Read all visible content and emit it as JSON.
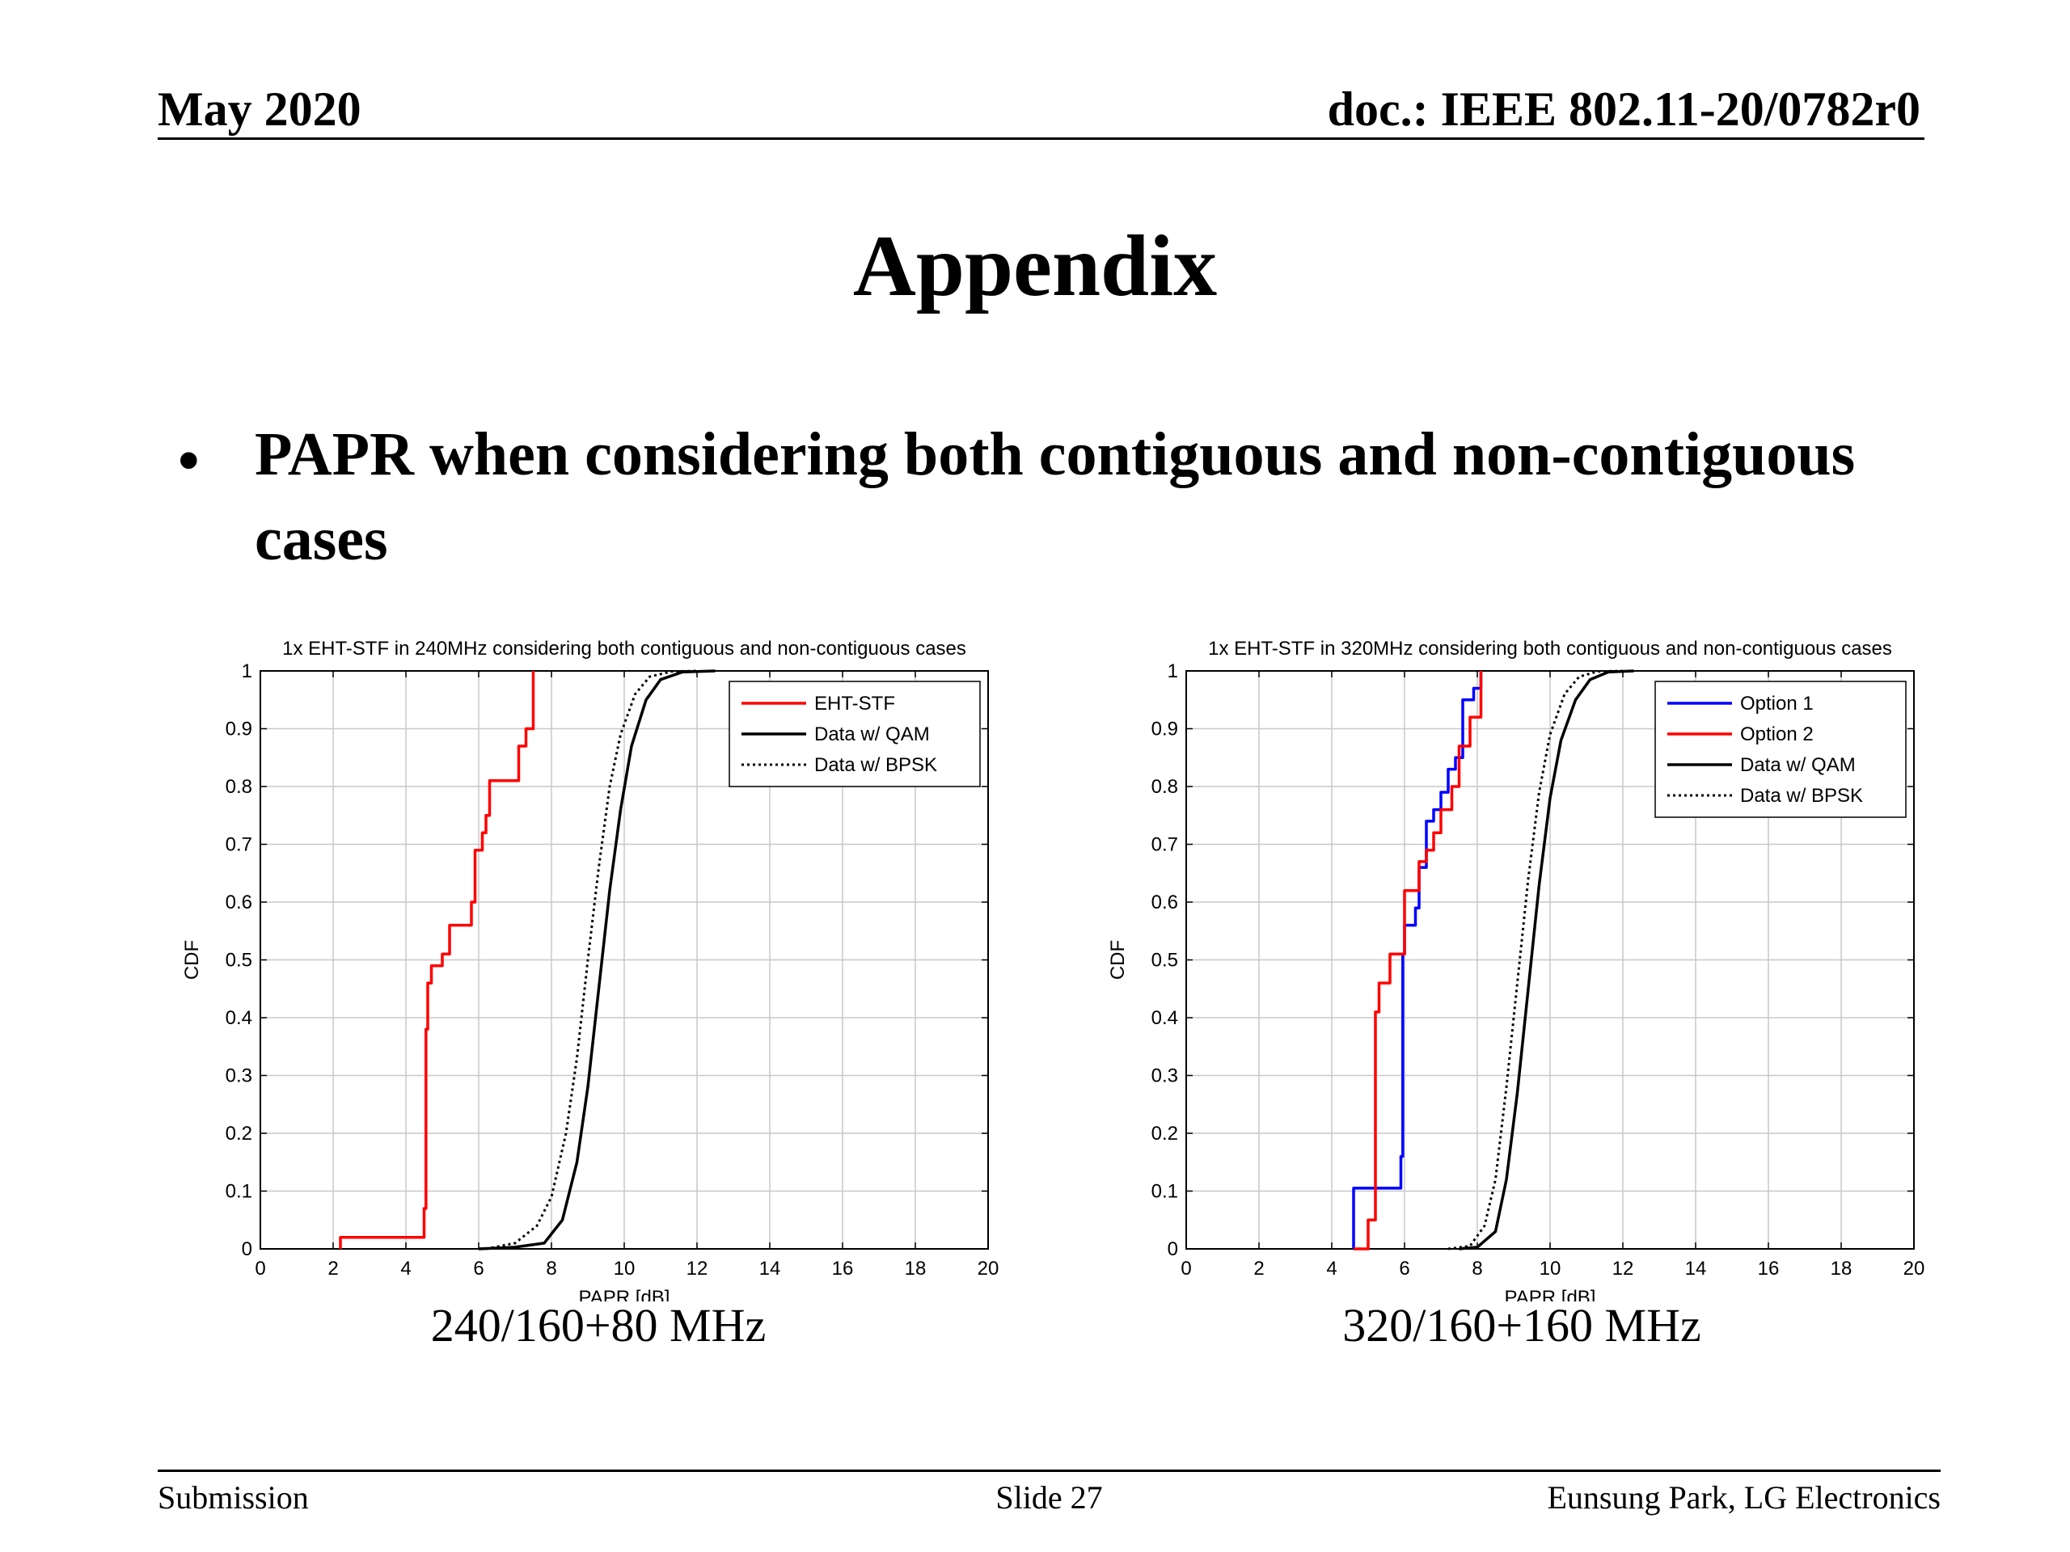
{
  "header": {
    "date": "May 2020",
    "doc": "doc.: IEEE 802.11-20/0782r0"
  },
  "slide": {
    "title": "Appendix",
    "bullet_symbol": "•",
    "bullet": "PAPR when considering both contiguous and non-contiguous cases"
  },
  "captions": [
    "240/160+80 MHz",
    "320/160+160 MHz"
  ],
  "footer": {
    "left": "Submission",
    "center": "Slide 27",
    "right": "Eunsung Park, LG Electronics"
  },
  "colors": {
    "red": "#ff0000",
    "blue": "#0000ff",
    "black": "#000000",
    "grid": "#c8c8c8"
  },
  "chart_data": [
    {
      "type": "line",
      "title": "1x EHT-STF in 240MHz considering both contiguous and non-contiguous cases",
      "xlabel": "PAPR [dB]",
      "ylabel": "CDF",
      "xlim": [
        0,
        20
      ],
      "ylim": [
        0,
        1
      ],
      "xticks": [
        "0",
        "2",
        "4",
        "6",
        "8",
        "10",
        "12",
        "14",
        "16",
        "18",
        "20"
      ],
      "yticks": [
        "0",
        "0.1",
        "0.2",
        "0.3",
        "0.4",
        "0.5",
        "0.6",
        "0.7",
        "0.8",
        "0.9",
        "1"
      ],
      "grid": true,
      "legend_position": "top-right",
      "series": [
        {
          "name": "EHT-STF",
          "style": "solid",
          "color": "#ff0000",
          "step": true,
          "x": [
            2.2,
            2.2,
            4.5,
            4.55,
            4.6,
            4.7,
            5.0,
            5.2,
            5.4,
            5.8,
            5.9,
            6.1,
            6.2,
            6.3,
            6.5,
            7.1,
            7.3,
            7.5
          ],
          "y": [
            0,
            0.02,
            0.07,
            0.38,
            0.46,
            0.49,
            0.51,
            0.56,
            0.56,
            0.6,
            0.69,
            0.72,
            0.75,
            0.81,
            0.81,
            0.87,
            0.9,
            1.0
          ]
        },
        {
          "name": "Data w/ QAM",
          "style": "solid",
          "color": "#000000",
          "x": [
            6.0,
            7.0,
            7.8,
            8.3,
            8.7,
            9.0,
            9.3,
            9.6,
            9.9,
            10.2,
            10.6,
            11.0,
            11.6,
            12.5
          ],
          "y": [
            0,
            0.003,
            0.01,
            0.05,
            0.15,
            0.28,
            0.45,
            0.62,
            0.76,
            0.87,
            0.95,
            0.985,
            0.998,
            1.0
          ]
        },
        {
          "name": "Data w/ BPSK",
          "style": "dotted",
          "color": "#000000",
          "x": [
            6.2,
            7.0,
            7.6,
            8.0,
            8.4,
            8.7,
            9.0,
            9.3,
            9.6,
            9.9,
            10.3,
            10.7,
            11.3,
            12.0
          ],
          "y": [
            0,
            0.01,
            0.04,
            0.09,
            0.2,
            0.33,
            0.5,
            0.66,
            0.8,
            0.89,
            0.96,
            0.99,
            0.999,
            1.0
          ]
        }
      ]
    },
    {
      "type": "line",
      "title": "1x EHT-STF in 320MHz considering both contiguous and non-contiguous cases",
      "xlabel": "PAPR [dB]",
      "ylabel": "CDF",
      "xlim": [
        0,
        20
      ],
      "ylim": [
        0,
        1
      ],
      "xticks": [
        "0",
        "2",
        "4",
        "6",
        "8",
        "10",
        "12",
        "14",
        "16",
        "18",
        "20"
      ],
      "yticks": [
        "0",
        "0.1",
        "0.2",
        "0.3",
        "0.4",
        "0.5",
        "0.6",
        "0.7",
        "0.8",
        "0.9",
        "1"
      ],
      "grid": true,
      "legend_position": "top-right",
      "series": [
        {
          "name": "Option 1",
          "style": "solid",
          "color": "#0000ff",
          "step": true,
          "x": [
            4.6,
            4.6,
            5.9,
            5.95,
            6.0,
            6.3,
            6.4,
            6.6,
            6.8,
            7.0,
            7.2,
            7.4,
            7.6,
            7.9,
            8.1
          ],
          "y": [
            0,
            0.105,
            0.16,
            0.51,
            0.56,
            0.59,
            0.66,
            0.74,
            0.76,
            0.79,
            0.83,
            0.85,
            0.95,
            0.97,
            1.0
          ]
        },
        {
          "name": "Option 2",
          "style": "solid",
          "color": "#ff0000",
          "step": true,
          "x": [
            4.6,
            5.0,
            5.2,
            5.3,
            5.6,
            6.0,
            6.4,
            6.6,
            6.8,
            7.0,
            7.3,
            7.5,
            7.8,
            8.1
          ],
          "y": [
            0,
            0.05,
            0.41,
            0.46,
            0.51,
            0.62,
            0.67,
            0.69,
            0.72,
            0.76,
            0.8,
            0.87,
            0.92,
            1.0
          ]
        },
        {
          "name": "Data w/ QAM",
          "style": "solid",
          "color": "#000000",
          "x": [
            7.5,
            8.0,
            8.5,
            8.8,
            9.1,
            9.4,
            9.7,
            10.0,
            10.3,
            10.7,
            11.1,
            11.6,
            12.3
          ],
          "y": [
            0,
            0.003,
            0.03,
            0.12,
            0.27,
            0.45,
            0.63,
            0.78,
            0.88,
            0.95,
            0.985,
            0.998,
            1.0
          ]
        },
        {
          "name": "Data w/ BPSK",
          "style": "dotted",
          "color": "#000000",
          "x": [
            7.2,
            7.8,
            8.2,
            8.5,
            8.8,
            9.1,
            9.4,
            9.7,
            10.0,
            10.4,
            10.8,
            11.3,
            12.0
          ],
          "y": [
            0,
            0.005,
            0.04,
            0.12,
            0.28,
            0.46,
            0.64,
            0.79,
            0.89,
            0.96,
            0.99,
            0.999,
            1.0
          ]
        }
      ]
    }
  ]
}
